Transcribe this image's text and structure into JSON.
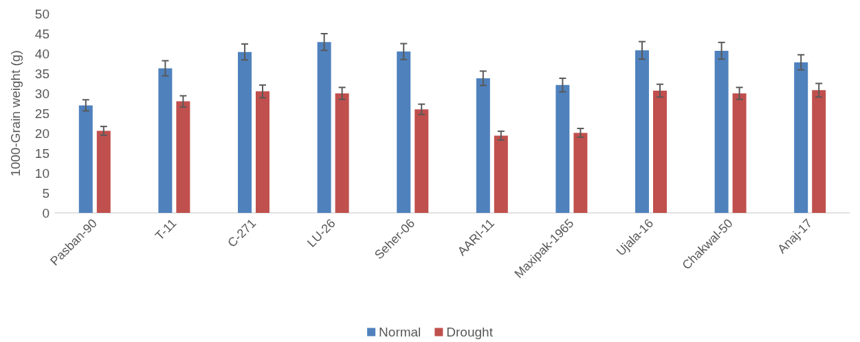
{
  "chart_data": {
    "type": "bar",
    "ylabel": "1000-Grain weight (g)",
    "categories": [
      "Pasban-90",
      "T-11",
      "C-271",
      "LU-26",
      "Seher-06",
      "AARI-11",
      "Maxipak-1965",
      "Ujala-16",
      "Chakwal-50",
      "Anaj-17"
    ],
    "series": [
      {
        "name": "Normal",
        "color": "#4f81bd",
        "values": [
          27.0,
          36.3,
          40.4,
          42.9,
          40.5,
          33.8,
          32.1,
          40.8,
          40.7,
          37.8
        ],
        "errors": [
          1.4,
          1.9,
          2.0,
          2.1,
          2.0,
          1.8,
          1.7,
          2.2,
          2.1,
          1.9
        ]
      },
      {
        "name": "Drought",
        "color": "#c0504d",
        "values": [
          20.6,
          28.0,
          30.5,
          30.0,
          26.0,
          19.4,
          20.1,
          30.7,
          30.0,
          30.8
        ],
        "errors": [
          1.1,
          1.4,
          1.6,
          1.5,
          1.3,
          1.1,
          1.1,
          1.6,
          1.5,
          1.7
        ]
      }
    ],
    "ylim": [
      0,
      50
    ],
    "yticks": [
      0,
      5,
      10,
      15,
      20,
      25,
      30,
      35,
      40,
      45,
      50
    ],
    "grid": false,
    "legend": "bottom"
  }
}
